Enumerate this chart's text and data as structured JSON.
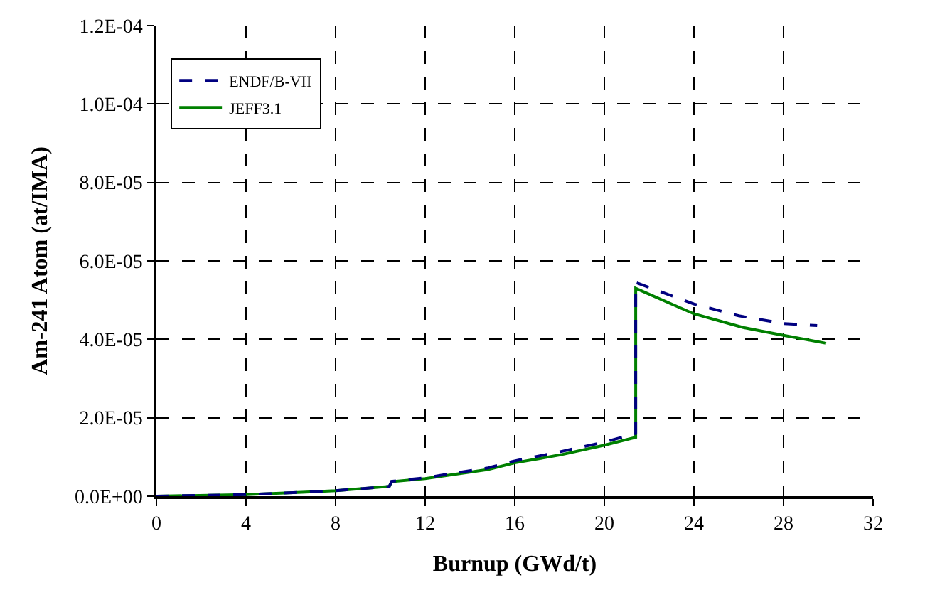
{
  "chart_data": {
    "type": "line",
    "xlabel": "Burnup (GWd/t)",
    "ylabel": "Am-241 Atom (at/IMA)",
    "xlim": [
      0,
      32
    ],
    "xticks": [
      0,
      4,
      8,
      12,
      16,
      20,
      24,
      28,
      32
    ],
    "ylim": [
      0,
      0.00012
    ],
    "yticks": [
      {
        "value": 0,
        "label": "0.0E+00"
      },
      {
        "value": 2e-05,
        "label": "2.0E-05"
      },
      {
        "value": 4e-05,
        "label": "4.0E-05"
      },
      {
        "value": 6e-05,
        "label": "6.0E-05"
      },
      {
        "value": 8e-05,
        "label": "8.0E-05"
      },
      {
        "value": 0.0001,
        "label": "1.0E-04"
      },
      {
        "value": 0.00012,
        "label": "1.2E-04"
      }
    ],
    "grid": true,
    "legend": "top left",
    "series": [
      {
        "name": "ENDF/B-VII",
        "color": "#000080",
        "line_style": "dashed",
        "x": [
          0,
          4,
          6.5,
          8,
          10.4,
          10.5,
          12,
          14.8,
          16,
          18,
          20,
          21.4,
          21.4,
          24,
          26,
          28,
          29.5
        ],
        "values": [
          0,
          4e-07,
          1e-06,
          1.4e-06,
          2.5e-06,
          3.8e-06,
          4.7e-06,
          7.2e-06,
          9e-06,
          1.13e-05,
          1.38e-05,
          1.6e-05,
          5.45e-05,
          4.9e-05,
          4.6e-05,
          4.4e-05,
          4.35e-05
        ]
      },
      {
        "name": "JEFF3.1",
        "color": "#008000",
        "line_style": "solid",
        "x": [
          0,
          4,
          6.5,
          8,
          10.4,
          10.5,
          12,
          14.8,
          16,
          18,
          20,
          21.4,
          21.4,
          24,
          26.2,
          28,
          29.9
        ],
        "values": [
          0,
          4e-07,
          1e-06,
          1.4e-06,
          2.5e-06,
          3.7e-06,
          4.5e-06,
          6.8e-06,
          8.5e-06,
          1.05e-05,
          1.3e-05,
          1.5e-05,
          5.3e-05,
          4.65e-05,
          4.3e-05,
          4.1e-05,
          3.9e-05
        ]
      }
    ]
  }
}
